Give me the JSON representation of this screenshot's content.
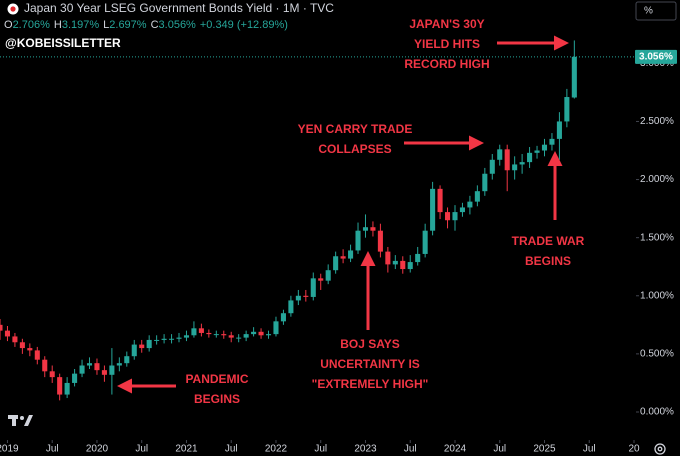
{
  "chart_data": {
    "type": "candlestick",
    "title": "Japan 30 Year LSEG Government Bonds Yield · 1M · TVC",
    "ohlc_legend": [
      {
        "key": "O",
        "value": "2.706%"
      },
      {
        "key": "H",
        "value": "3.197%"
      },
      {
        "key": "L",
        "value": "2.697%"
      },
      {
        "key": "C",
        "value": "3.056%"
      }
    ],
    "change_label": "+0.349 (+12.89%)",
    "watermark": "@KOBEISSILETTER",
    "scale_button": "%",
    "last_price_label": "3.056%",
    "up_color": "#26a69a",
    "down_color": "#f23645",
    "annotation_color": "#f23645",
    "x": [
      "2018-12",
      "2019-01",
      "2019-02",
      "2019-03",
      "2019-04",
      "2019-05",
      "2019-06",
      "2019-07",
      "2019-08",
      "2019-09",
      "2019-10",
      "2019-11",
      "2019-12",
      "2020-01",
      "2020-02",
      "2020-03",
      "2020-04",
      "2020-05",
      "2020-06",
      "2020-07",
      "2020-08",
      "2020-09",
      "2020-10",
      "2020-11",
      "2020-12",
      "2021-01",
      "2021-02",
      "2021-03",
      "2021-04",
      "2021-05",
      "2021-06",
      "2021-07",
      "2021-08",
      "2021-09",
      "2021-10",
      "2021-11",
      "2021-12",
      "2022-01",
      "2022-02",
      "2022-03",
      "2022-04",
      "2022-05",
      "2022-06",
      "2022-07",
      "2022-08",
      "2022-09",
      "2022-10",
      "2022-11",
      "2022-12",
      "2023-01",
      "2023-02",
      "2023-03",
      "2023-04",
      "2023-05",
      "2023-06",
      "2023-07",
      "2023-08",
      "2023-09",
      "2023-10",
      "2023-11",
      "2023-12",
      "2024-01",
      "2024-02",
      "2024-03",
      "2024-04",
      "2024-05",
      "2024-06",
      "2024-07",
      "2024-08",
      "2024-09",
      "2024-10",
      "2024-11",
      "2024-12",
      "2025-01",
      "2025-02",
      "2025-03",
      "2025-04",
      "2025-05"
    ],
    "open": [
      0.75,
      0.7,
      0.65,
      0.6,
      0.55,
      0.53,
      0.45,
      0.35,
      0.3,
      0.15,
      0.25,
      0.33,
      0.4,
      0.42,
      0.36,
      0.32,
      0.4,
      0.42,
      0.48,
      0.58,
      0.55,
      0.62,
      0.62,
      0.63,
      0.63,
      0.64,
      0.66,
      0.72,
      0.68,
      0.67,
      0.67,
      0.66,
      0.64,
      0.64,
      0.67,
      0.69,
      0.66,
      0.67,
      0.78,
      0.85,
      0.96,
      1.0,
      0.99,
      1.15,
      1.13,
      1.22,
      1.34,
      1.32,
      1.39,
      1.56,
      1.59,
      1.56,
      1.38,
      1.27,
      1.3,
      1.23,
      1.29,
      1.36,
      1.56,
      1.92,
      1.72,
      1.65,
      1.72,
      1.76,
      1.81,
      1.9,
      2.05,
      2.17,
      2.26,
      2.08,
      2.13,
      2.15,
      2.23,
      2.25,
      2.3,
      2.35,
      2.5,
      2.706
    ],
    "high": [
      0.8,
      0.74,
      0.68,
      0.63,
      0.59,
      0.56,
      0.48,
      0.4,
      0.33,
      0.3,
      0.37,
      0.45,
      0.47,
      0.46,
      0.4,
      0.55,
      0.47,
      0.52,
      0.62,
      0.62,
      0.66,
      0.66,
      0.67,
      0.67,
      0.68,
      0.7,
      0.78,
      0.76,
      0.71,
      0.7,
      0.7,
      0.69,
      0.67,
      0.7,
      0.73,
      0.72,
      0.7,
      0.82,
      0.88,
      1.0,
      1.05,
      1.05,
      1.2,
      1.19,
      1.27,
      1.38,
      1.4,
      1.44,
      1.63,
      1.7,
      1.64,
      1.62,
      1.42,
      1.35,
      1.34,
      1.35,
      1.42,
      1.62,
      1.98,
      1.95,
      1.76,
      1.78,
      1.8,
      1.86,
      1.95,
      2.1,
      2.22,
      2.3,
      2.3,
      2.2,
      2.22,
      2.28,
      2.29,
      2.35,
      2.4,
      2.58,
      2.78,
      3.197
    ],
    "low": [
      0.62,
      0.61,
      0.56,
      0.5,
      0.48,
      0.41,
      0.3,
      0.25,
      0.1,
      0.12,
      0.22,
      0.3,
      0.37,
      0.32,
      0.26,
      0.15,
      0.35,
      0.39,
      0.45,
      0.51,
      0.52,
      0.58,
      0.59,
      0.59,
      0.6,
      0.61,
      0.64,
      0.65,
      0.64,
      0.64,
      0.63,
      0.6,
      0.6,
      0.61,
      0.65,
      0.63,
      0.63,
      0.65,
      0.75,
      0.82,
      0.92,
      0.95,
      0.96,
      1.05,
      1.1,
      1.19,
      1.28,
      1.29,
      1.36,
      1.5,
      1.51,
      1.33,
      1.2,
      1.23,
      1.19,
      1.2,
      1.26,
      1.33,
      1.52,
      1.66,
      1.58,
      1.56,
      1.68,
      1.7,
      1.77,
      1.86,
      2.0,
      2.12,
      1.9,
      2.0,
      2.05,
      2.1,
      2.18,
      2.2,
      2.25,
      2.17,
      2.45,
      2.697
    ],
    "close": [
      0.7,
      0.65,
      0.6,
      0.55,
      0.53,
      0.45,
      0.35,
      0.3,
      0.15,
      0.25,
      0.33,
      0.4,
      0.42,
      0.36,
      0.32,
      0.4,
      0.42,
      0.48,
      0.58,
      0.55,
      0.62,
      0.62,
      0.63,
      0.63,
      0.64,
      0.66,
      0.72,
      0.68,
      0.67,
      0.67,
      0.66,
      0.64,
      0.64,
      0.67,
      0.69,
      0.66,
      0.67,
      0.78,
      0.85,
      0.96,
      1.0,
      0.99,
      1.15,
      1.13,
      1.22,
      1.34,
      1.32,
      1.39,
      1.56,
      1.59,
      1.56,
      1.38,
      1.27,
      1.3,
      1.23,
      1.29,
      1.36,
      1.56,
      1.92,
      1.72,
      1.65,
      1.72,
      1.76,
      1.81,
      1.9,
      2.05,
      2.17,
      2.26,
      2.08,
      2.13,
      2.15,
      2.23,
      2.25,
      2.3,
      2.35,
      2.5,
      2.71,
      3.056
    ],
    "xlim": [
      "2018-12",
      "2026-01"
    ],
    "xticks": [
      {
        "value": "2019-01",
        "label": "2019"
      },
      {
        "value": "2019-07",
        "label": "Jul"
      },
      {
        "value": "2020-01",
        "label": "2020"
      },
      {
        "value": "2020-07",
        "label": "Jul"
      },
      {
        "value": "2021-01",
        "label": "2021"
      },
      {
        "value": "2021-07",
        "label": "Jul"
      },
      {
        "value": "2022-01",
        "label": "2022"
      },
      {
        "value": "2022-07",
        "label": "Jul"
      },
      {
        "value": "2023-01",
        "label": "2023"
      },
      {
        "value": "2023-07",
        "label": "Jul"
      },
      {
        "value": "2024-01",
        "label": "2024"
      },
      {
        "value": "2024-07",
        "label": "Jul"
      },
      {
        "value": "2025-01",
        "label": "2025"
      },
      {
        "value": "2025-07",
        "label": "Jul"
      },
      {
        "value": "2026-01",
        "label": "20"
      }
    ],
    "ylim": [
      -0.241,
      3.545
    ],
    "yticks": [
      {
        "value": 0,
        "label": "0.000%"
      },
      {
        "value": 0.5,
        "label": "0.500%"
      },
      {
        "value": 1,
        "label": "1.000%"
      },
      {
        "value": 1.5,
        "label": "1.500%"
      },
      {
        "value": 2,
        "label": "2.000%"
      },
      {
        "value": 2.5,
        "label": "2.500%"
      },
      {
        "value": 3,
        "label": "3.000%"
      }
    ],
    "grid": false,
    "annotations": [
      {
        "lines": [
          "JAPAN'S 30Y",
          "YIELD HITS",
          "RECORD HIGH"
        ]
      },
      {
        "lines": [
          "YEN CARRY TRADE",
          "COLLAPSES"
        ]
      },
      {
        "lines": [
          "TRADE WAR",
          "BEGINS"
        ]
      },
      {
        "lines": [
          "BOJ SAYS",
          "UNCERTAINTY IS",
          "\"EXTREMELY HIGH\""
        ]
      },
      {
        "lines": [
          "PANDEMIC",
          "BEGINS"
        ]
      }
    ]
  }
}
